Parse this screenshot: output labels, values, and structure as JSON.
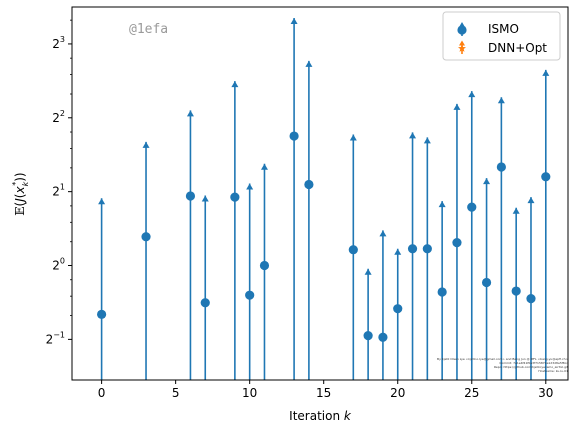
{
  "chart_data": {
    "type": "scatter",
    "xlabel": "Iteration k",
    "xlabel_plain": "Iteration ",
    "xlabel_italic": "k",
    "ylabel": "𝔼(J(x*k))",
    "y_scale": "log2",
    "xlim": [
      -2,
      31.5
    ],
    "ylim_log2": [
      -1.55,
      3.5
    ],
    "x_ticks": [
      0,
      5,
      10,
      15,
      20,
      25,
      30
    ],
    "y_ticks": [
      {
        "value_log2": -1,
        "base": "2",
        "exp": "−1"
      },
      {
        "value_log2": 0,
        "base": "2",
        "exp": "0"
      },
      {
        "value_log2": 1,
        "base": "2",
        "exp": "1"
      },
      {
        "value_log2": 2,
        "base": "2",
        "exp": "2"
      },
      {
        "value_log2": 3,
        "base": "2",
        "exp": "3"
      }
    ],
    "grid": false,
    "legend_position": "top-right",
    "series": [
      {
        "name": "ISMO",
        "color": "#1f77b4",
        "marker": "circle",
        "errorbar": "upper-limit arrows",
        "points": [
          {
            "x": 0,
            "y": 0.632,
            "upper": 1.88
          },
          {
            "x": 3,
            "y": 1.31,
            "upper": 3.19
          },
          {
            "x": 6,
            "y": 1.92,
            "upper": 4.29
          },
          {
            "x": 7,
            "y": 0.705,
            "upper": 1.93
          },
          {
            "x": 9,
            "y": 1.9,
            "upper": 5.64
          },
          {
            "x": 10,
            "y": 0.757,
            "upper": 2.16
          },
          {
            "x": 11,
            "y": 1.0,
            "upper": 2.6
          },
          {
            "x": 13,
            "y": 3.37,
            "upper": 10.2
          },
          {
            "x": 14,
            "y": 2.14,
            "upper": 6.82
          },
          {
            "x": 17,
            "y": 1.16,
            "upper": 3.42
          },
          {
            "x": 18,
            "y": 0.518,
            "upper": 0.97
          },
          {
            "x": 19,
            "y": 0.51,
            "upper": 1.39
          },
          {
            "x": 20,
            "y": 0.667,
            "upper": 1.17
          },
          {
            "x": 21,
            "y": 1.17,
            "upper": 3.49
          },
          {
            "x": 22,
            "y": 1.17,
            "upper": 3.33
          },
          {
            "x": 23,
            "y": 0.78,
            "upper": 1.83
          },
          {
            "x": 24,
            "y": 1.24,
            "upper": 4.56
          },
          {
            "x": 25,
            "y": 1.73,
            "upper": 5.14
          },
          {
            "x": 26,
            "y": 0.853,
            "upper": 2.27
          },
          {
            "x": 27,
            "y": 2.52,
            "upper": 4.85
          },
          {
            "x": 28,
            "y": 0.787,
            "upper": 1.72
          },
          {
            "x": 29,
            "y": 0.733,
            "upper": 1.9
          },
          {
            "x": 30,
            "y": 2.3,
            "upper": 6.27
          }
        ]
      },
      {
        "name": "DNN+Opt",
        "color": "#ff7f0e",
        "marker": "star",
        "errorbar": "upper-limit arrows",
        "points": []
      }
    ]
  },
  "watermark": {
    "text": "@1efa",
    "color": "#9a9a9a"
  },
  "footnote": [
    "By Kjetil Olsen Lye <kjetil.o.lye@gmail.com> and Bang Jun @ IPFL <bang.yu@epfl.ch>",
    "Commit: 7a1e4f41f0e3f715870e1d3d8e5f8cc",
    "Repo: https://github.com/kjetil-lye/ismo_airfoil.git",
    "Hostname: ku-lu-01"
  ]
}
